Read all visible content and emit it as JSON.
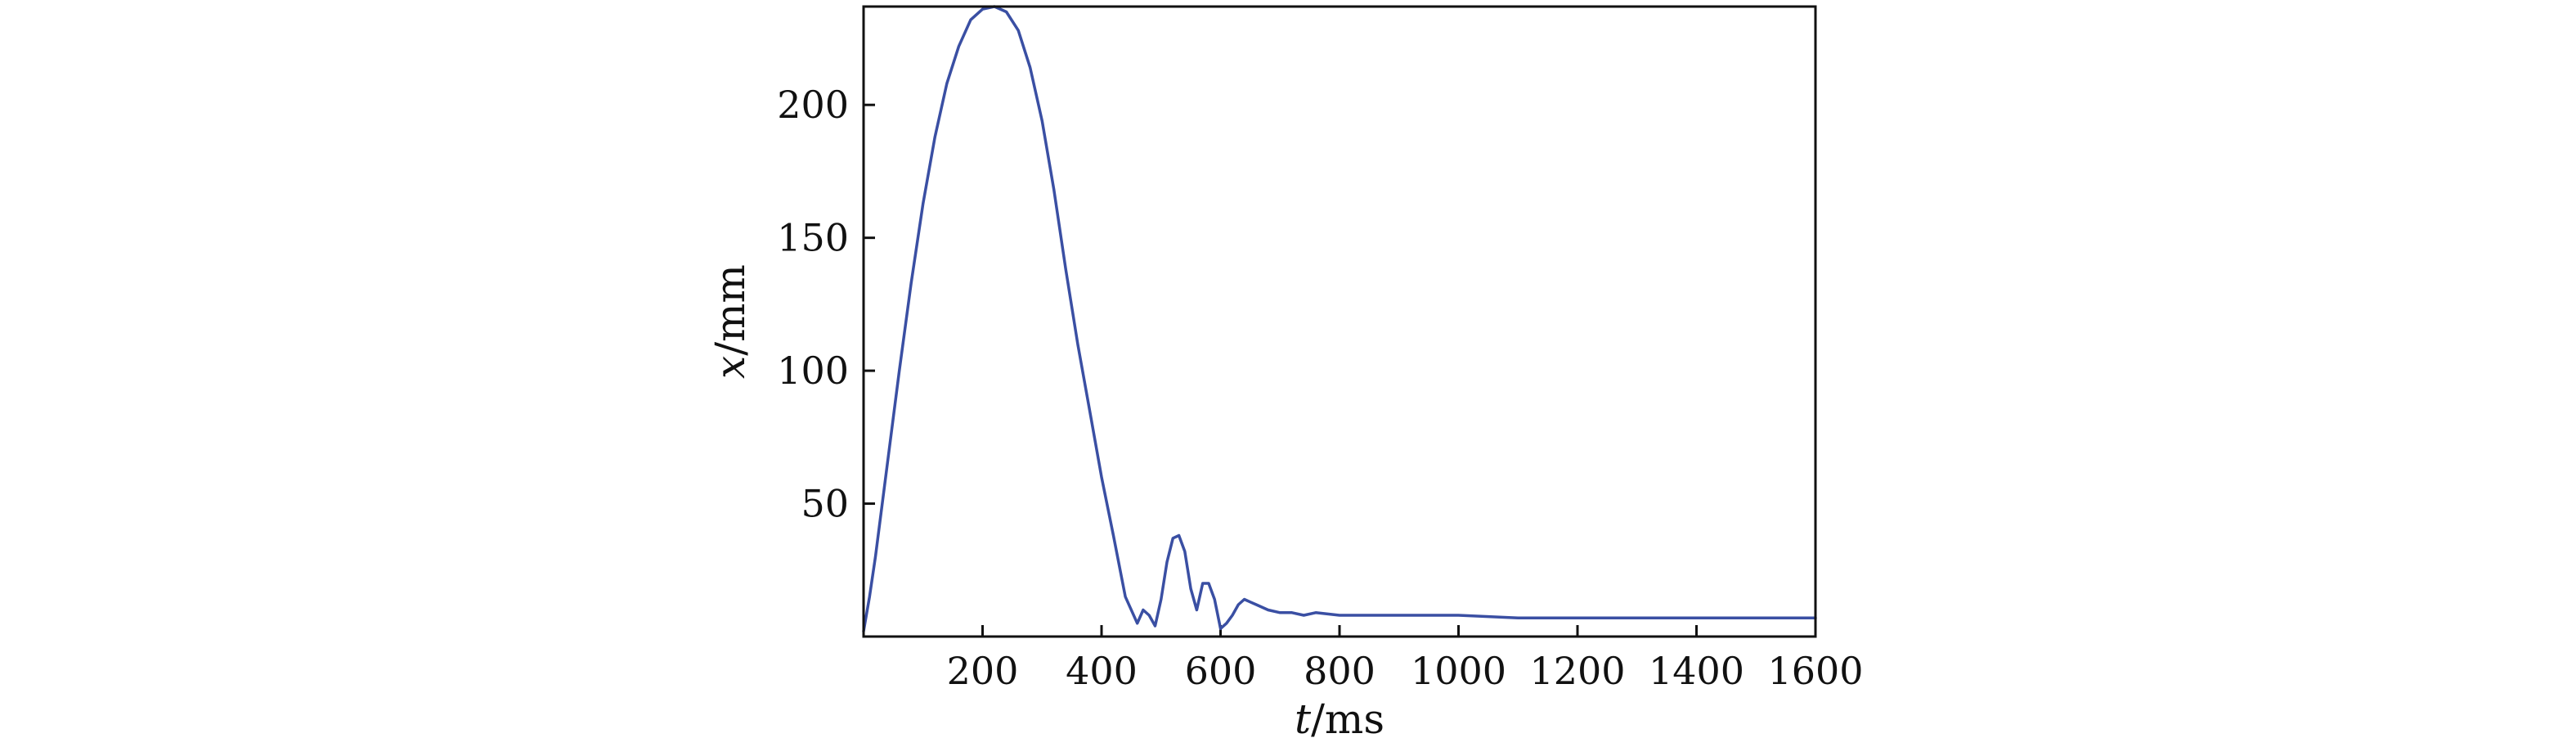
{
  "chart_data": {
    "type": "line",
    "title": "",
    "xlabel": {
      "var": "t",
      "unit": "/ms"
    },
    "ylabel": {
      "var": "x",
      "unit": "/mm"
    },
    "xlim": [
      0,
      1600
    ],
    "ylim": [
      0,
      237
    ],
    "xticks": [
      200,
      400,
      600,
      800,
      1000,
      1200,
      1400,
      1600
    ],
    "xtick_labels": [
      "200",
      "400",
      "600",
      "800",
      "1000",
      "1200",
      "1400",
      "1600"
    ],
    "yticks": [
      50,
      100,
      150,
      200
    ],
    "ytick_labels": [
      "50",
      "100",
      "150",
      "200"
    ],
    "grid": false,
    "line_color": "#3a4fa3",
    "series": [
      {
        "x": [
          0,
          10,
          20,
          40,
          60,
          80,
          100,
          120,
          140,
          160,
          180,
          200,
          220,
          240,
          260,
          280,
          300,
          320,
          340,
          360,
          380,
          400,
          420,
          440,
          460,
          470,
          480,
          490,
          500,
          510,
          520,
          530,
          540,
          550,
          560,
          570,
          580,
          590,
          600,
          610,
          620,
          630,
          640,
          650,
          660,
          680,
          700,
          720,
          740,
          760,
          800,
          850,
          900,
          1000,
          1100,
          1200,
          1300,
          1400,
          1500,
          1600
        ],
        "y": [
          2,
          15,
          30,
          65,
          100,
          133,
          163,
          188,
          208,
          222,
          232,
          236,
          237,
          235,
          228,
          214,
          194,
          168,
          138,
          110,
          85,
          60,
          38,
          15,
          5,
          10,
          8,
          4,
          14,
          28,
          37,
          38,
          32,
          18,
          10,
          20,
          20,
          14,
          3,
          5,
          8,
          12,
          14,
          13,
          12,
          10,
          9,
          9,
          8,
          9,
          8,
          8,
          8,
          8,
          7,
          7,
          7,
          7,
          7,
          7
        ]
      }
    ]
  }
}
